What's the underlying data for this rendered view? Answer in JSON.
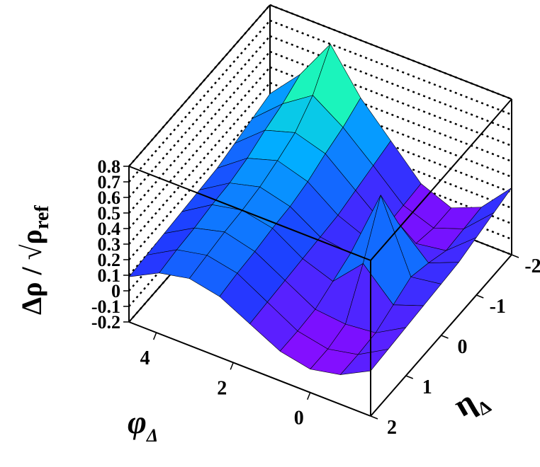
{
  "chart_data": {
    "type": "surface",
    "x_label": "φ",
    "x_label_sub": "Δ",
    "y_label": "η",
    "y_label_sub": "Δ",
    "z_label": "Δρ / √ρ",
    "z_label_sub": "ref",
    "x": [
      -1.571,
      -0.785,
      0,
      0.785,
      1.571,
      2.356,
      3.142,
      3.927,
      4.712
    ],
    "y": [
      -2,
      -1.5,
      -1,
      -0.5,
      0,
      0.5,
      1,
      1.5,
      2
    ],
    "z": [
      [
        0.23,
        0.2,
        0.17,
        0.14,
        0.13,
        0.12,
        0.11,
        0.1,
        0.09
      ],
      [
        0.03,
        0.02,
        0.01,
        0.06,
        0.1,
        0.05,
        0,
        -0.01,
        -0.01
      ],
      [
        -0.05,
        -0.05,
        -0.02,
        0.24,
        0.55,
        0.24,
        -0.02,
        -0.05,
        -0.05
      ],
      [
        0.03,
        0.02,
        0.01,
        0.06,
        0.1,
        0.05,
        0,
        -0.01,
        -0.01
      ],
      [
        0.23,
        0.2,
        0.17,
        0.14,
        0.13,
        0.12,
        0.11,
        0.1,
        0.09
      ],
      [
        0.43,
        0.37,
        0.33,
        0.28,
        0.25,
        0.24,
        0.22,
        0.21,
        0.19
      ],
      [
        0.7,
        0.5,
        0.39,
        0.34,
        0.3,
        0.28,
        0.27,
        0.25,
        0.23
      ],
      [
        0.43,
        0.37,
        0.33,
        0.28,
        0.25,
        0.24,
        0.22,
        0.21,
        0.19
      ],
      [
        0.23,
        0.2,
        0.17,
        0.14,
        0.13,
        0.12,
        0.11,
        0.1,
        0.09
      ]
    ],
    "xlim": [
      -1.571,
      4.712
    ],
    "xticks": [
      0,
      2,
      4
    ],
    "ylim": [
      2,
      -2
    ],
    "yticks": [
      -2,
      -1,
      0,
      1,
      2
    ],
    "zlim": [
      -0.2,
      0.8
    ],
    "zticks": [
      -0.2,
      -0.1,
      0,
      0.1,
      0.2,
      0.3,
      0.4,
      0.5,
      0.6,
      0.7,
      0.8
    ],
    "palette": [
      "#ff00ff",
      "#7a10ff",
      "#1e3cff",
      "#00b4ff",
      "#20ffb0",
      "#40ff60"
    ],
    "grid": true
  }
}
